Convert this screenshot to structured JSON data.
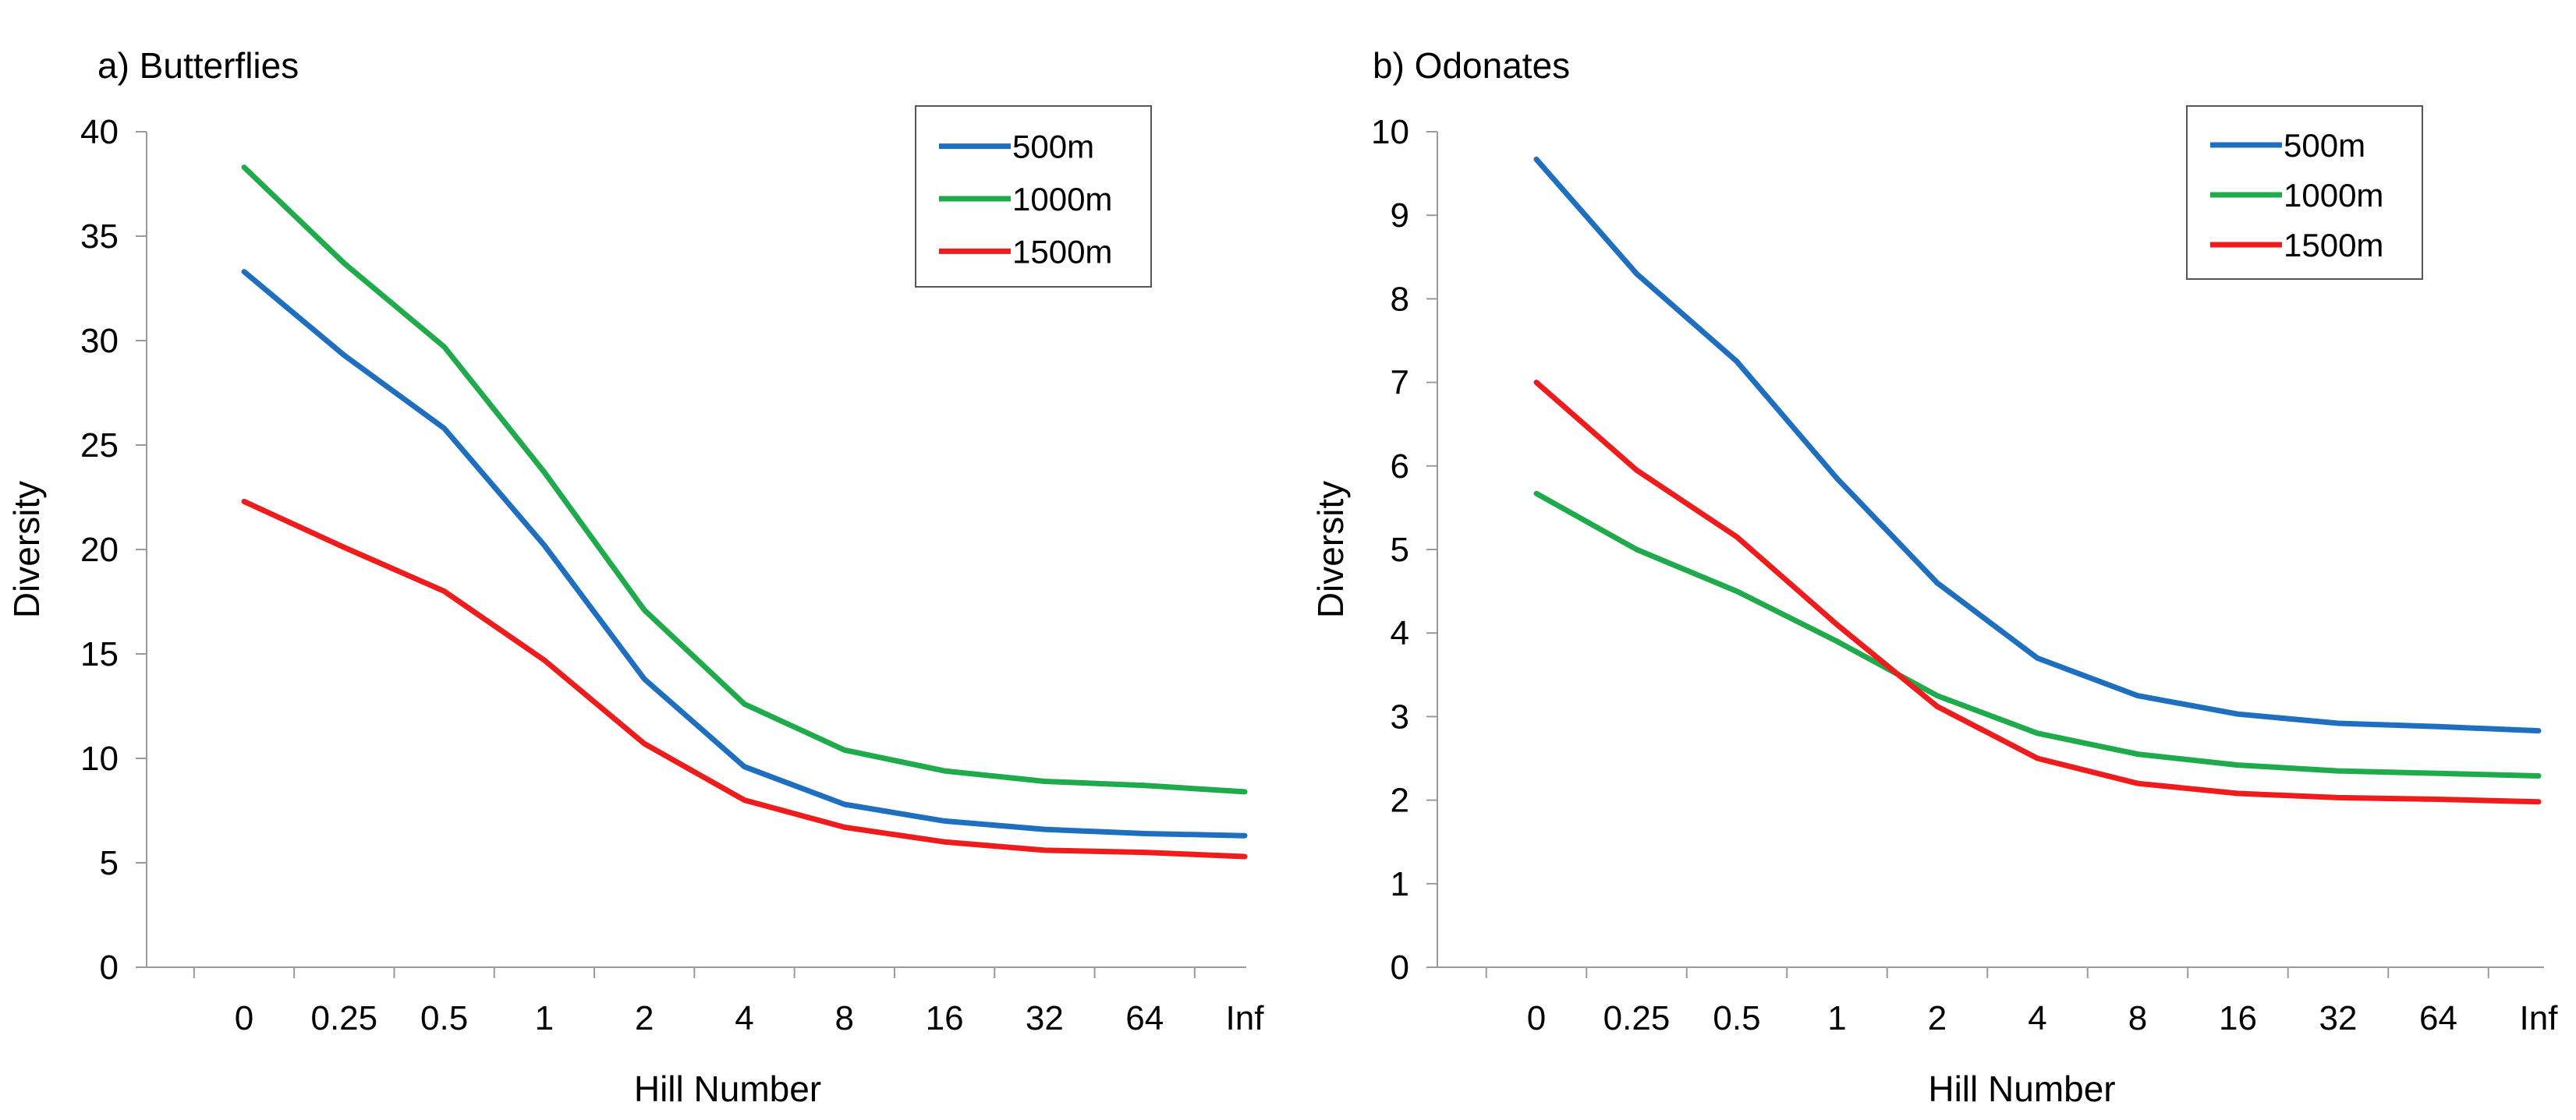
{
  "chart_data": [
    {
      "type": "line",
      "title": "a) Butterflies",
      "xlabel": "Hill Number",
      "ylabel": "Diversity",
      "categories": [
        "0",
        "0.25",
        "0.5",
        "1",
        "2",
        "4",
        "8",
        "16",
        "32",
        "64",
        "Inf"
      ],
      "ylim": [
        0,
        40
      ],
      "yticks": [
        0,
        5,
        10,
        15,
        20,
        25,
        30,
        35,
        40
      ],
      "grid": false,
      "legend_position": "top-right",
      "series": [
        {
          "name": "500m",
          "color": "#1f6fc1",
          "values": [
            33.3,
            29.3,
            25.8,
            20.2,
            13.8,
            9.6,
            7.8,
            7.0,
            6.6,
            6.4,
            6.3
          ]
        },
        {
          "name": "1000m",
          "color": "#1faa4b",
          "values": [
            38.3,
            33.7,
            29.7,
            23.7,
            17.1,
            12.6,
            10.4,
            9.4,
            8.9,
            8.7,
            8.4
          ]
        },
        {
          "name": "1500m",
          "color": "#ee1c1c",
          "values": [
            22.3,
            20.1,
            18.0,
            14.7,
            10.7,
            8.0,
            6.7,
            6.0,
            5.6,
            5.5,
            5.3
          ]
        }
      ]
    },
    {
      "type": "line",
      "title": "b) Odonates",
      "xlabel": "Hill Number",
      "ylabel": "Diversity",
      "categories": [
        "0",
        "0.25",
        "0.5",
        "1",
        "2",
        "4",
        "8",
        "16",
        "32",
        "64",
        "Inf"
      ],
      "ylim": [
        0,
        10
      ],
      "yticks": [
        0,
        1,
        2,
        3,
        4,
        5,
        6,
        7,
        8,
        9,
        10
      ],
      "grid": false,
      "legend_position": "top-right",
      "series": [
        {
          "name": "500m",
          "color": "#1f6fc1",
          "values": [
            9.67,
            8.3,
            7.25,
            5.85,
            4.6,
            3.7,
            3.25,
            3.03,
            2.92,
            2.88,
            2.83
          ]
        },
        {
          "name": "1000m",
          "color": "#1faa4b",
          "values": [
            5.67,
            5.0,
            4.5,
            3.9,
            3.25,
            2.8,
            2.55,
            2.42,
            2.35,
            2.32,
            2.29
          ]
        },
        {
          "name": "1500m",
          "color": "#ee1c1c",
          "values": [
            7.0,
            5.95,
            5.15,
            4.1,
            3.12,
            2.5,
            2.2,
            2.08,
            2.03,
            2.01,
            1.98
          ]
        }
      ]
    }
  ]
}
